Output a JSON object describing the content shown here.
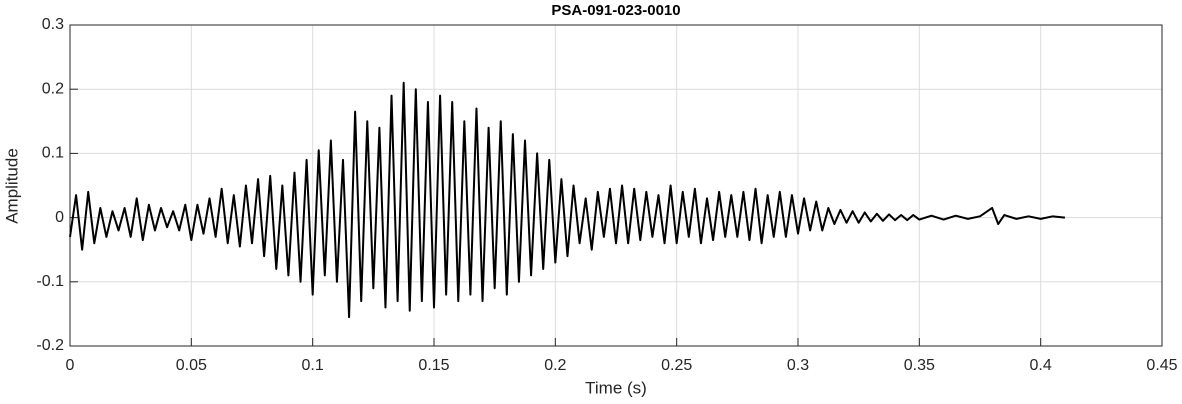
{
  "chart_data": {
    "type": "line",
    "title": "PSA-091-023-0010",
    "xlabel": "Time (s)",
    "ylabel": "Amplitude",
    "xlim": [
      0,
      0.45
    ],
    "xticks": [
      0,
      0.05,
      0.1,
      0.15,
      0.2,
      0.25,
      0.3,
      0.35,
      0.4,
      0.45
    ],
    "ylim": [
      -0.2,
      0.3
    ],
    "yticks": [
      -0.2,
      -0.1,
      0,
      0.1,
      0.2,
      0.3
    ],
    "grid": true,
    "color": "#000000",
    "x": [
      0,
      0.0025,
      0.005,
      0.0075,
      0.01,
      0.0125,
      0.015,
      0.0175,
      0.02,
      0.0225,
      0.025,
      0.0275,
      0.03,
      0.0325,
      0.035,
      0.0375,
      0.04,
      0.0425,
      0.045,
      0.0475,
      0.05,
      0.0525,
      0.055,
      0.0575,
      0.06,
      0.0625,
      0.065,
      0.0675,
      0.07,
      0.0725,
      0.075,
      0.0775,
      0.08,
      0.0825,
      0.085,
      0.0875,
      0.09,
      0.0925,
      0.095,
      0.0975,
      0.1,
      0.1025,
      0.105,
      0.1075,
      0.11,
      0.1125,
      0.115,
      0.1175,
      0.12,
      0.1225,
      0.125,
      0.1275,
      0.13,
      0.1325,
      0.135,
      0.1375,
      0.14,
      0.1425,
      0.145,
      0.1475,
      0.15,
      0.1525,
      0.155,
      0.1575,
      0.16,
      0.1625,
      0.165,
      0.1675,
      0.17,
      0.1725,
      0.175,
      0.1775,
      0.18,
      0.1825,
      0.185,
      0.1875,
      0.19,
      0.1925,
      0.195,
      0.1975,
      0.2,
      0.2025,
      0.205,
      0.2075,
      0.21,
      0.2125,
      0.215,
      0.2175,
      0.22,
      0.2225,
      0.225,
      0.2275,
      0.23,
      0.2325,
      0.235,
      0.2375,
      0.24,
      0.2425,
      0.245,
      0.2475,
      0.25,
      0.2525,
      0.255,
      0.2575,
      0.26,
      0.2625,
      0.265,
      0.2675,
      0.27,
      0.2725,
      0.275,
      0.2775,
      0.28,
      0.2825,
      0.285,
      0.2875,
      0.29,
      0.2925,
      0.295,
      0.2975,
      0.3,
      0.3025,
      0.305,
      0.3075,
      0.31,
      0.3125,
      0.315,
      0.3175,
      0.32,
      0.3225,
      0.325,
      0.3275,
      0.33,
      0.3325,
      0.335,
      0.3375,
      0.34,
      0.3425,
      0.345,
      0.3475,
      0.35,
      0.355,
      0.36,
      0.365,
      0.37,
      0.375,
      0.38,
      0.3825,
      0.385,
      0.39,
      0.395,
      0.4,
      0.405,
      0.41
    ],
    "values": [
      -0.03,
      0.035,
      -0.05,
      0.04,
      -0.04,
      0.015,
      -0.03,
      0.01,
      -0.02,
      0.015,
      -0.03,
      0.03,
      -0.035,
      0.02,
      -0.02,
      0.015,
      -0.015,
      0.01,
      -0.02,
      0.02,
      -0.035,
      0.02,
      -0.025,
      0.03,
      -0.03,
      0.045,
      -0.04,
      0.035,
      -0.045,
      0.05,
      -0.04,
      0.06,
      -0.06,
      0.065,
      -0.08,
      0.05,
      -0.09,
      0.07,
      -0.1,
      0.09,
      -0.12,
      0.105,
      -0.09,
      0.12,
      -0.1,
      0.09,
      -0.155,
      0.165,
      -0.13,
      0.15,
      -0.11,
      0.14,
      -0.14,
      0.19,
      -0.13,
      0.21,
      -0.145,
      0.2,
      -0.13,
      0.18,
      -0.14,
      0.19,
      -0.12,
      0.18,
      -0.13,
      0.15,
      -0.12,
      0.17,
      -0.13,
      0.14,
      -0.11,
      0.15,
      -0.12,
      0.13,
      -0.1,
      0.12,
      -0.09,
      0.1,
      -0.08,
      0.09,
      -0.07,
      0.06,
      -0.06,
      0.05,
      -0.04,
      0.03,
      -0.05,
      0.04,
      -0.03,
      0.045,
      -0.04,
      0.05,
      -0.04,
      0.045,
      -0.035,
      0.04,
      -0.03,
      0.035,
      -0.04,
      0.05,
      -0.04,
      0.04,
      -0.03,
      0.045,
      -0.04,
      0.03,
      -0.035,
      0.04,
      -0.03,
      0.035,
      -0.03,
      0.04,
      -0.035,
      0.045,
      -0.04,
      0.035,
      -0.03,
      0.04,
      -0.03,
      0.035,
      -0.025,
      0.03,
      -0.02,
      0.025,
      -0.02,
      0.015,
      -0.01,
      0.012,
      -0.008,
      0.01,
      -0.008,
      0.008,
      -0.006,
      0.006,
      -0.005,
      0.005,
      -0.004,
      0.004,
      -0.004,
      0.004,
      -0.003,
      0.003,
      -0.003,
      0.003,
      -0.002,
      0.002,
      0.015,
      -0.01,
      0.004,
      -0.002,
      0.002,
      -0.002,
      0.002,
      0
    ]
  }
}
